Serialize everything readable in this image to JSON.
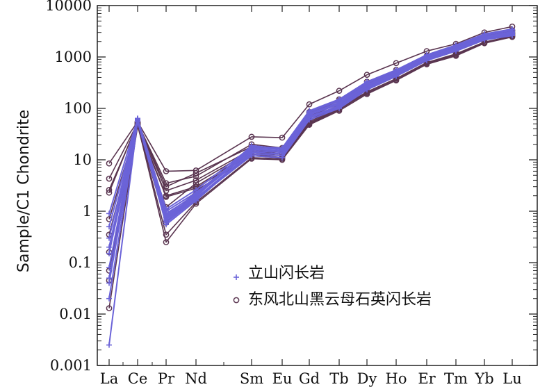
{
  "chart_data": {
    "type": "line",
    "ylabel": "Sample/C1 Chondrite",
    "xlabel": "",
    "y_scale": "log",
    "ylim": [
      0.001,
      10000
    ],
    "y_ticks": [
      "0.001",
      "0.01",
      "0.1",
      "1",
      "10",
      "100",
      "1000",
      "10000"
    ],
    "categories": [
      "La",
      "Ce",
      "Pr",
      "Nd",
      "Sm",
      "Eu",
      "Gd",
      "Tb",
      "Dy",
      "Ho",
      "Er",
      "Tm",
      "Yb",
      "Lu"
    ],
    "grid": false,
    "legend_position": "bottom-right",
    "groups": [
      {
        "legend_label": "立山闪长岩",
        "marker": "plus",
        "color": "#6b63d8",
        "samples": [
          [
            0.0025,
            58,
            0.7,
            1.8,
            14,
            13,
            70,
            110,
            250,
            450,
            900,
            1400,
            2300,
            2800
          ],
          [
            0.02,
            55,
            0.6,
            1.7,
            13,
            12,
            65,
            105,
            240,
            440,
            880,
            1350,
            2250,
            2700
          ],
          [
            0.05,
            60,
            0.8,
            2.0,
            15,
            14,
            75,
            120,
            270,
            480,
            950,
            1450,
            2400,
            2900
          ],
          [
            0.08,
            62,
            0.9,
            2.1,
            16,
            15,
            80,
            130,
            290,
            500,
            1000,
            1500,
            2500,
            3100
          ],
          [
            0.15,
            57,
            1.0,
            2.3,
            16,
            15,
            78,
            125,
            280,
            490,
            980,
            1500,
            2450,
            3000
          ],
          [
            0.3,
            61,
            0.85,
            2.2,
            17,
            16,
            85,
            140,
            310,
            530,
            1050,
            1600,
            2650,
            3300
          ],
          [
            0.5,
            59,
            0.55,
            1.6,
            14,
            13,
            68,
            112,
            255,
            460,
            920,
            1420,
            2350,
            2850
          ],
          [
            0.9,
            63,
            1.1,
            2.6,
            18,
            17,
            90,
            150,
            330,
            560,
            1100,
            1700,
            2800,
            3500
          ],
          [
            0.04,
            56,
            0.65,
            1.75,
            12,
            11,
            60,
            100,
            230,
            420,
            850,
            1300,
            2150,
            2600
          ],
          [
            0.2,
            64,
            0.75,
            1.9,
            19,
            16,
            88,
            145,
            320,
            550,
            1080,
            1650,
            2750,
            3400
          ]
        ]
      },
      {
        "legend_label": "东风北山黑云母石英闪长岩",
        "marker": "circle",
        "color": "#5a3550",
        "samples": [
          [
            8.5,
            55,
            6,
            6.2,
            28,
            27,
            120,
            220,
            450,
            760,
            1300,
            1800,
            3000,
            3900
          ],
          [
            4.3,
            52,
            3.5,
            4.8,
            20,
            17,
            85,
            150,
            330,
            560,
            1050,
            1550,
            2600,
            3300
          ],
          [
            2.6,
            50,
            3.0,
            5.5,
            18,
            16,
            80,
            140,
            300,
            520,
            1000,
            1500,
            2500,
            3200
          ],
          [
            2.3,
            53,
            2.5,
            4.0,
            16,
            14,
            70,
            125,
            280,
            480,
            950,
            1400,
            2350,
            3000
          ],
          [
            0.7,
            50,
            2.0,
            3.0,
            14,
            12,
            60,
            110,
            250,
            450,
            900,
            1350,
            2200,
            2800
          ],
          [
            0.35,
            48,
            1.9,
            2.8,
            13,
            11,
            55,
            105,
            240,
            430,
            870,
            1300,
            2150,
            2700
          ],
          [
            0.16,
            47,
            0.35,
            1.5,
            11,
            10.5,
            50,
            95,
            200,
            360,
            750,
            1100,
            1900,
            2500
          ],
          [
            0.07,
            49,
            0.25,
            1.4,
            10.5,
            10,
            48,
            90,
            190,
            350,
            720,
            1050,
            1850,
            2450
          ],
          [
            0.013,
            45,
            0.6,
            2.5,
            12,
            11,
            52,
            100,
            210,
            380,
            780,
            1150,
            1950,
            2550
          ],
          [
            0.045,
            46,
            1.2,
            3.5,
            15,
            13,
            65,
            115,
            260,
            460,
            920,
            1380,
            2300,
            2900
          ]
        ]
      }
    ]
  }
}
